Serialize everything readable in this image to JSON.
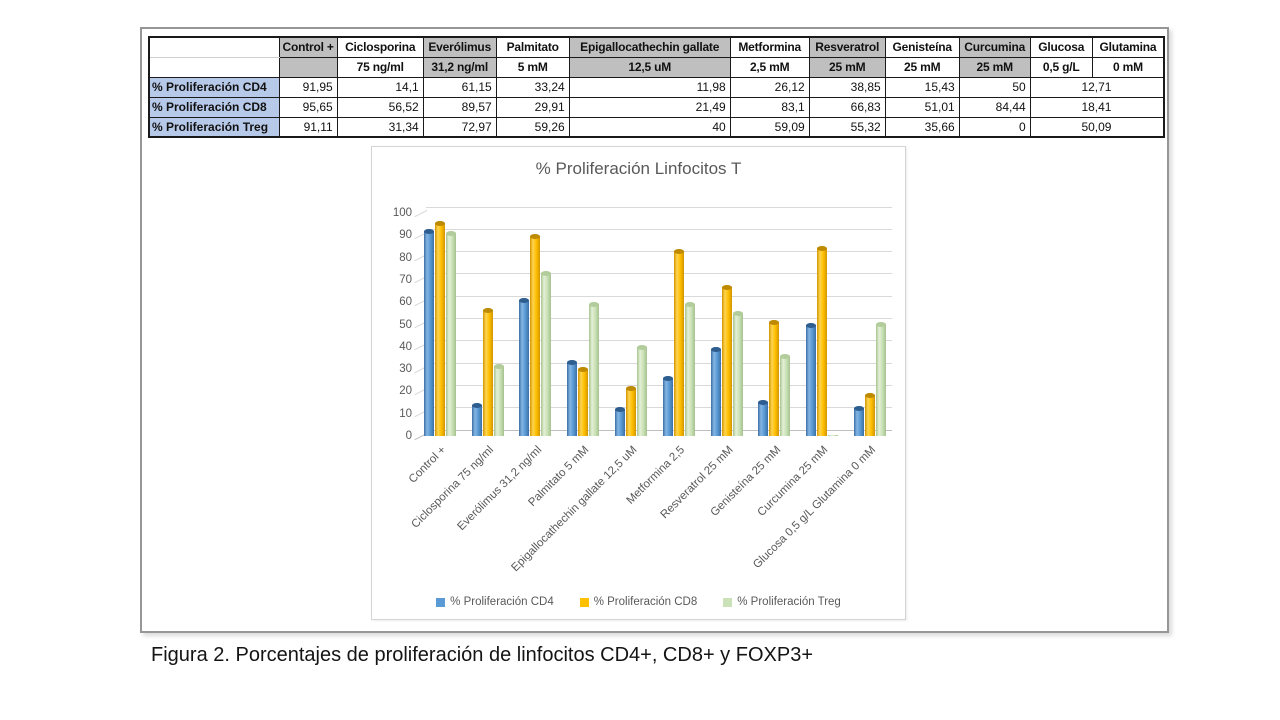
{
  "caption": "Figura 2. Porcentajes de proliferación de linfocitos CD4+, CD8+ y FOXP3+",
  "table": {
    "row_header_bg": "#B7C9E8",
    "shaded_header_bg": "#BFBFBF",
    "columns": [
      {
        "name": "Control +",
        "dose": "",
        "shaded": true
      },
      {
        "name": "Ciclosporina",
        "dose": "75 ng/ml",
        "shaded": false
      },
      {
        "name": "Everólimus",
        "dose": "31,2 ng/ml",
        "shaded": true
      },
      {
        "name": "Palmitato",
        "dose": "5 mM",
        "shaded": false
      },
      {
        "name": "Epigallocathechin gallate",
        "dose": "12,5 uM",
        "shaded": true
      },
      {
        "name": "Metformina",
        "dose": "2,5 mM",
        "shaded": false
      },
      {
        "name": "Resveratrol",
        "dose": "25 mM",
        "shaded": true
      },
      {
        "name": "Genisteína",
        "dose": "25 mM",
        "shaded": false
      },
      {
        "name": "Curcumina",
        "dose": "25 mM",
        "shaded": true
      },
      {
        "name": "Glucosa",
        "dose": "0,5 g/L",
        "shaded": false
      },
      {
        "name": "Glutamina",
        "dose": "0 mM",
        "shaded": false
      }
    ],
    "rows": [
      {
        "label": "% Proliferación CD4",
        "values": [
          "91,95",
          "14,1",
          "61,15",
          "33,24",
          "11,98",
          "26,12",
          "38,85",
          "15,43",
          "50"
        ],
        "merged_value": "12,71"
      },
      {
        "label": "% Proliferación CD8",
        "values": [
          "95,65",
          "56,52",
          "89,57",
          "29,91",
          "21,49",
          "83,1",
          "66,83",
          "51,01",
          "84,44"
        ],
        "merged_value": "18,41"
      },
      {
        "label": "% Proliferación Treg",
        "values": [
          "91,11",
          "31,34",
          "72,97",
          "59,26",
          "40",
          "59,09",
          "55,32",
          "35,66",
          "0"
        ],
        "merged_value": "50,09"
      }
    ]
  },
  "chart_data": {
    "type": "bar",
    "title": "% Proliferación Linfocitos T",
    "categories": [
      "Control +",
      "Ciclosporina 75 ng/ml",
      "Everólimus 31,2 ng/ml",
      "Palmitato 5 mM",
      "Epigallocathechin gallate 12,5 uM",
      "Metformina 2,5",
      "Resveratrol 25 mM",
      "Genisteína 25 mM",
      "Curcumina 25 mM",
      "Glucosa 0,5 g/L Glutamina 0 mM"
    ],
    "series": [
      {
        "name": "% Proliferación CD4",
        "values": [
          91.95,
          14.1,
          61.15,
          33.24,
          11.98,
          26.12,
          38.85,
          15.43,
          50,
          12.71
        ],
        "color": "#5B9BD5",
        "light": "#85B5E3",
        "edge": "#3C6EA5",
        "cap": "#2E5D90"
      },
      {
        "name": "% Proliferación CD8",
        "values": [
          95.65,
          56.52,
          89.57,
          29.91,
          21.49,
          83.1,
          66.83,
          51.01,
          84.44,
          18.41
        ],
        "color": "#FFC000",
        "light": "#FFD452",
        "edge": "#D29500",
        "cap": "#BD8A00"
      },
      {
        "name": "% Proliferación Treg",
        "values": [
          91.11,
          31.34,
          72.97,
          59.26,
          40,
          59.09,
          55.32,
          35.66,
          0,
          50.09
        ],
        "color": "#CBE2B8",
        "light": "#E3F0D6",
        "edge": "#A6C28E",
        "cap": "#B2CD9B"
      }
    ],
    "xlabel": "",
    "ylabel": "",
    "ylim": [
      0,
      100
    ],
    "ytick_step": 10,
    "grid": true,
    "grid_color": "#D9D9D9",
    "axis_text_color": "#595959",
    "legend_position": "bottom"
  }
}
